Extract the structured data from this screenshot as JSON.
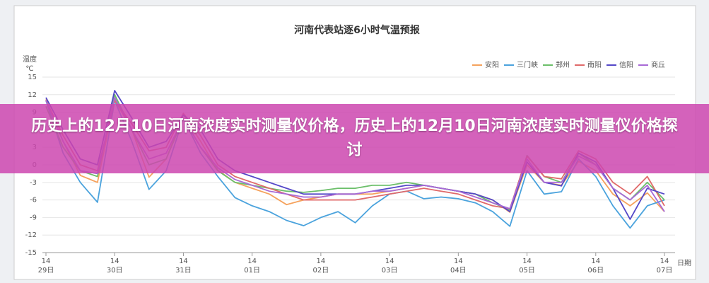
{
  "chart_data": {
    "type": "line",
    "title": "河南代表站逐6小时气温预报",
    "y_label_lines": [
      "温度",
      "℃"
    ],
    "x_label": "日期",
    "categories": [
      "14\n29日",
      null,
      null,
      null,
      "14\n30日",
      null,
      null,
      null,
      "14\n31日",
      null,
      null,
      null,
      "14\n01日",
      null,
      null,
      null,
      "14\n02日",
      null,
      null,
      null,
      "14\n03日",
      null,
      null,
      null,
      "14\n04日",
      null,
      null,
      null,
      "14\n05日",
      null,
      null,
      null,
      "14\n06日",
      null,
      null,
      null,
      "14\n07日"
    ],
    "ylim": [
      -15,
      15
    ],
    "yticks": [
      -15,
      -12,
      -9,
      -6,
      -3,
      0,
      3,
      6,
      9,
      12,
      15
    ],
    "grid": true,
    "legend": "top-right",
    "series": [
      {
        "name": "安阳",
        "color": "#f5a25d",
        "values": [
          11.2,
          4,
          -1.8,
          -3,
          11.1,
          6,
          -2.1,
          1,
          8.6,
          4,
          -0.9,
          -3,
          -4,
          -5,
          -6.8,
          -6,
          -5.5,
          -5,
          -5,
          -5,
          -4.5,
          -4,
          -3.5,
          -4,
          -4.5,
          -5,
          -6,
          -8.1,
          0,
          -3,
          -3.5,
          0.6,
          -1,
          -5,
          -7,
          -4.8,
          -8
        ]
      },
      {
        "name": "三门峡",
        "color": "#4ba3dd",
        "values": [
          11,
          2,
          -3,
          -6.4,
          11,
          4,
          -4.2,
          -1,
          8,
          2,
          -2,
          -5.6,
          -7,
          -8,
          -9.5,
          -10.4,
          -9,
          -8,
          -9.9,
          -7,
          -5,
          -4.5,
          -5.8,
          -5.5,
          -5.8,
          -6.5,
          -8,
          -10.5,
          -1,
          -5,
          -4.6,
          1,
          -2,
          -7,
          -10.8,
          -7,
          -6
        ]
      },
      {
        "name": "郑州",
        "color": "#6cbf6a",
        "values": [
          10,
          3,
          -1,
          -2,
          12,
          6,
          0,
          1,
          8,
          3,
          -1,
          -3,
          -3.5,
          -4,
          -4.5,
          -4.7,
          -4.4,
          -4,
          -4,
          -3.5,
          -3.5,
          -3,
          -3.5,
          -4,
          -4.5,
          -5,
          -6.5,
          -7.7,
          1.6,
          -2,
          -3,
          2,
          0,
          -4,
          -6,
          -3,
          -6
        ]
      },
      {
        "name": "南阳",
        "color": "#e06a6a",
        "values": [
          11,
          5,
          0,
          -1,
          11,
          7,
          2.4,
          3,
          8.8,
          5,
          0,
          -2,
          -3,
          -4,
          -5,
          -6,
          -6,
          -6,
          -6,
          -5.5,
          -5,
          -4.5,
          -4,
          -4.5,
          -5,
          -6,
          -7,
          -7.5,
          1.5,
          -2,
          -2.4,
          2.4,
          1,
          -3,
          -5,
          -2,
          -7
        ]
      },
      {
        "name": "信阳",
        "color": "#5448c8",
        "values": [
          11.5,
          6,
          1,
          0,
          12.7,
          8,
          3,
          4,
          8.5,
          6,
          1,
          -1,
          -2,
          -3,
          -4,
          -5,
          -5,
          -5,
          -5,
          -4.5,
          -4,
          -3.5,
          -3.5,
          -4,
          -4.5,
          -5,
          -6,
          -8,
          0.5,
          -3,
          -3.6,
          2,
          0.5,
          -4,
          -9.3,
          -4,
          -5
        ]
      },
      {
        "name": "商丘",
        "color": "#a86ad6",
        "values": [
          11,
          4,
          -1,
          -1.5,
          11.5,
          6,
          1,
          2,
          8,
          3,
          -0.5,
          -2.5,
          -3.5,
          -4.5,
          -5,
          -5.5,
          -5.5,
          -5,
          -5,
          -4.5,
          -4.5,
          -4,
          -3.5,
          -4,
          -4.5,
          -5.5,
          -6.5,
          -7.5,
          1,
          -3,
          -3,
          1.5,
          0,
          -4,
          -6,
          -3.5,
          -8
        ]
      }
    ]
  },
  "banner": {
    "title": "历史上的12月10日河南浓度实时测量仪价格，历史上的12月10日河南浓度实时测量仪价格探讨"
  }
}
